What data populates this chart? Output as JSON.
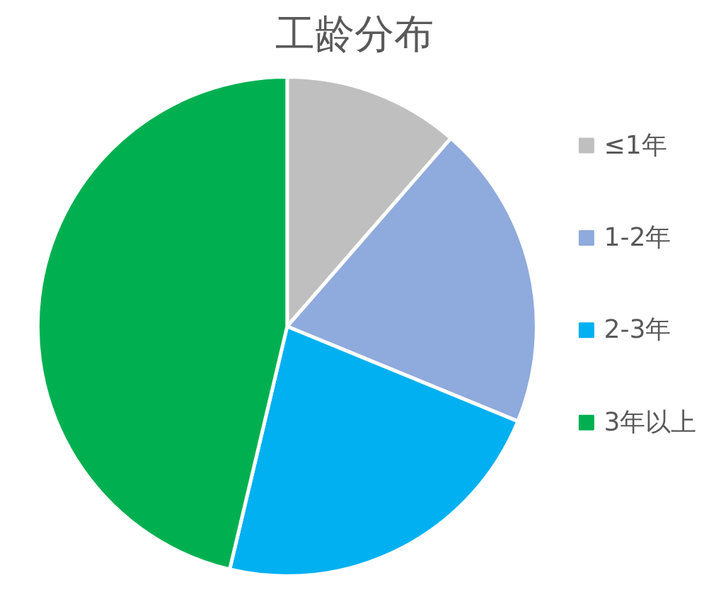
{
  "chart_data": {
    "type": "pie",
    "title": "工龄分布",
    "categories": [
      "≤1年",
      "1-2年",
      "2-3年",
      "3年以上"
    ],
    "values": [
      11.4,
      19.8,
      22.5,
      46.3
    ],
    "colors": [
      "#bfbfbf",
      "#8faadc",
      "#00b0f0",
      "#00b050"
    ],
    "legend": "right"
  }
}
